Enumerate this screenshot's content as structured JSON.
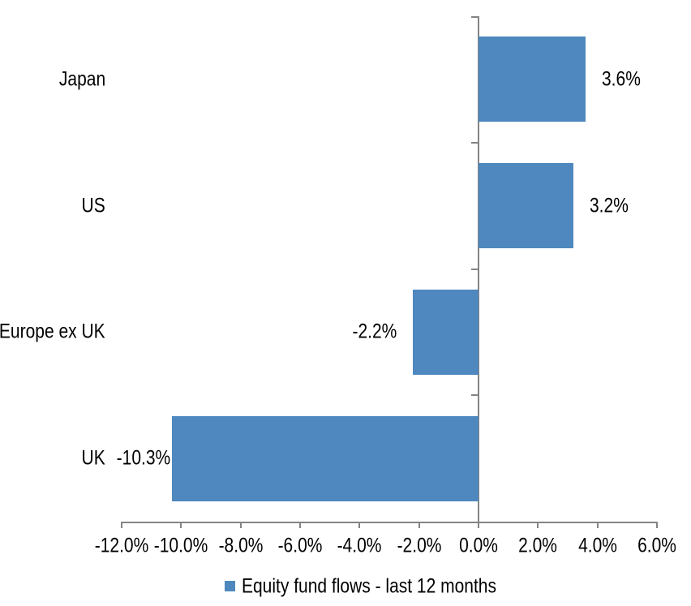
{
  "chart_data": {
    "type": "bar",
    "orientation": "horizontal",
    "title": "",
    "xlabel": "",
    "ylabel": "",
    "categories": [
      "Japan",
      "US",
      "Europe ex UK",
      "UK"
    ],
    "values": [
      3.6,
      3.2,
      -2.2,
      -10.3
    ],
    "data_labels": [
      "3.6%",
      "3.2%",
      "-2.2%",
      "-10.3%"
    ],
    "series": [
      {
        "name": "Equity fund flows - last 12 months",
        "values": [
          3.6,
          3.2,
          -2.2,
          -10.3
        ]
      }
    ],
    "xlim": [
      -12,
      6
    ],
    "x_ticks": [
      -12,
      -10,
      -8,
      -6,
      -4,
      -2,
      0,
      2,
      4,
      6
    ],
    "x_tick_labels": [
      "-12.0%",
      "-10.0%",
      "-8.0%",
      "-6.0%",
      "-4.0%",
      "-2.0%",
      "0.0%",
      "2.0%",
      "4.0%",
      "6.0%"
    ],
    "grid": false,
    "legend_position": "bottom",
    "bar_color": "#4E88BE",
    "axis_color": "#848484",
    "text_color": "#000000"
  },
  "legend": {
    "marker_color": "#4E88BE",
    "label": "Equity fund flows - last 12 months"
  }
}
